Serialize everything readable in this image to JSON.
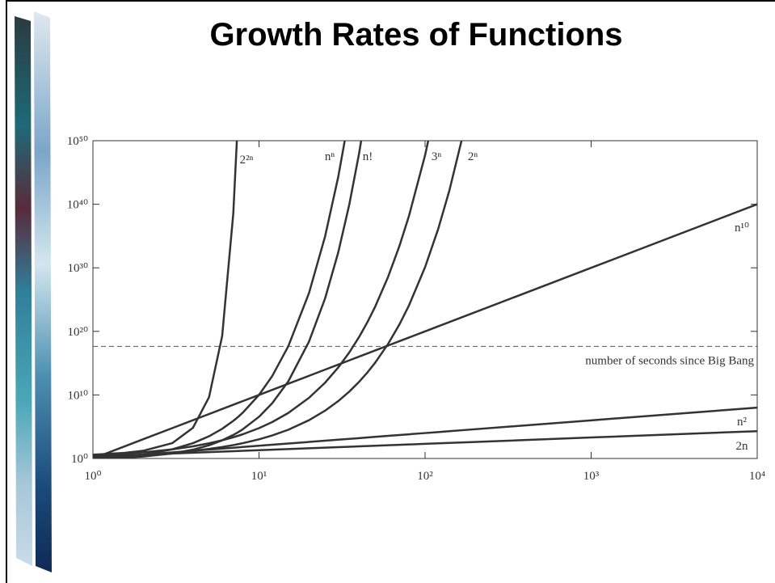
{
  "chart_data": {
    "type": "line",
    "title": "Growth Rates of Functions",
    "log_x": true,
    "log_y": true,
    "x": [
      1,
      1.5,
      2,
      3,
      4,
      5,
      6,
      7,
      7.5,
      8,
      10,
      12,
      15,
      20,
      25,
      30,
      35,
      40,
      45,
      50,
      60,
      70,
      80,
      100,
      120,
      140,
      170,
      1000,
      10000
    ],
    "series": [
      {
        "name": "2n",
        "color": "#333333",
        "values": [
          2,
          3,
          4,
          6,
          8,
          10,
          12,
          14,
          15,
          16,
          20,
          24,
          30,
          40,
          50,
          60,
          70,
          80,
          90,
          100,
          120,
          140,
          160,
          200,
          240,
          280,
          340,
          2000,
          20000
        ]
      },
      {
        "name": "n²",
        "color": "#333333",
        "values": [
          1,
          2.25,
          4,
          9,
          16,
          25,
          36,
          49,
          56.25,
          64,
          100,
          144,
          225,
          400,
          625,
          900,
          1225,
          1600,
          2025,
          2500,
          3600,
          4900,
          6400,
          10000,
          14400,
          19600,
          28900,
          1000000,
          100000000
        ]
      },
      {
        "name": "n¹⁰",
        "color": "#333333",
        "values": [
          1,
          57.67,
          1024,
          59049,
          1048576,
          9765625,
          60466176,
          282475249,
          563135147,
          1073741824,
          10000000000.0,
          61900000000.0,
          577000000000.0,
          10240000000000.0,
          95400000000000.0,
          590000000000000.0,
          2760000000000000.0,
          1.05e+16,
          3.41e+16,
          9.77e+16,
          6.05e+17,
          2.82e+18,
          1.07e+19,
          1e+20,
          6.19e+20,
          2.89e+21,
          2.02e+22,
          1e+30,
          1e+40
        ]
      },
      {
        "name": "2ⁿ",
        "color": "#333333",
        "values": [
          2,
          2.83,
          4,
          8,
          16,
          32,
          64,
          128,
          181,
          256,
          1024,
          4096,
          32768,
          1048576,
          33600000.0,
          1070000000.0,
          34400000000.0,
          1100000000000.0,
          35200000000000.0,
          1130000000000000.0,
          1.15e+18,
          1.18e+21,
          1.21e+24,
          1.27e+30,
          1.33e+36,
          1.39e+42,
          1.5e+51,
          null,
          null
        ]
      },
      {
        "name": "3ⁿ",
        "color": "#333333",
        "values": [
          3,
          5.2,
          9,
          27,
          81,
          243,
          729,
          2187,
          3788,
          6561,
          59049,
          531441,
          14300000.0,
          3490000000.0,
          847000000000.0,
          206000000000000.0,
          5e+16,
          1.22e+19,
          2.95e+21,
          7.18e+23,
          4.24e+28,
          2.5e+33,
          1.48e+38,
          5.15e+47,
          1.8e+57,
          null,
          null,
          null,
          null
        ]
      },
      {
        "name": "n!",
        "color": "#333333",
        "values": [
          1,
          1.33,
          2,
          6,
          24,
          120,
          720,
          5040,
          14034,
          40320,
          3628800,
          479000000.0,
          1310000000000.0,
          2.43e+18,
          1.55e+25,
          2.65e+32,
          1.03e+40,
          8.16e+47,
          1.2e+56,
          null,
          null,
          null,
          null,
          null,
          null,
          null,
          null,
          null,
          null
        ]
      },
      {
        "name": "nⁿ",
        "color": "#333333",
        "values": [
          1,
          1.84,
          4,
          27,
          256,
          3125,
          46656,
          823543,
          3650000.0,
          16800000.0,
          10000000000.0,
          8920000000000.0,
          4.38e+17,
          1.05e+26,
          8.88e+34,
          2.06e+44,
          1.1e+54,
          null,
          null,
          null,
          null,
          null,
          null,
          null,
          null,
          null,
          null,
          null,
          null
        ]
      },
      {
        "name": "2²ⁿ",
        "color": "#333333",
        "values": [
          4,
          7.1,
          16,
          256,
          65536,
          4290000000.0,
          1.84e+19,
          3.4e+38,
          3.07e+54,
          null,
          null,
          null,
          null,
          null,
          null,
          null,
          null,
          null,
          null,
          null,
          null,
          null,
          null,
          null,
          null,
          null,
          null,
          null,
          null
        ]
      }
    ],
    "reference_line": {
      "label": "number of seconds since Big Bang",
      "value": 4.3e+17
    },
    "xlim": [
      1,
      10000
    ],
    "ylim": [
      1,
      1e+50
    ],
    "xticks": [
      {
        "value": 1,
        "label": "10⁰"
      },
      {
        "value": 10,
        "label": "10¹"
      },
      {
        "value": 100,
        "label": "10²"
      },
      {
        "value": 1000,
        "label": "10³"
      },
      {
        "value": 10000,
        "label": "10⁴"
      }
    ],
    "yticks": [
      {
        "value": 1,
        "label": "10⁰"
      },
      {
        "value": 10000000000.0,
        "label": "10¹⁰"
      },
      {
        "value": 1e+20,
        "label": "10²⁰"
      },
      {
        "value": 1e+30,
        "label": "10³⁰"
      },
      {
        "value": 1e+40,
        "label": "10⁴⁰"
      },
      {
        "value": 1e+50,
        "label": "10⁵⁰"
      }
    ]
  }
}
